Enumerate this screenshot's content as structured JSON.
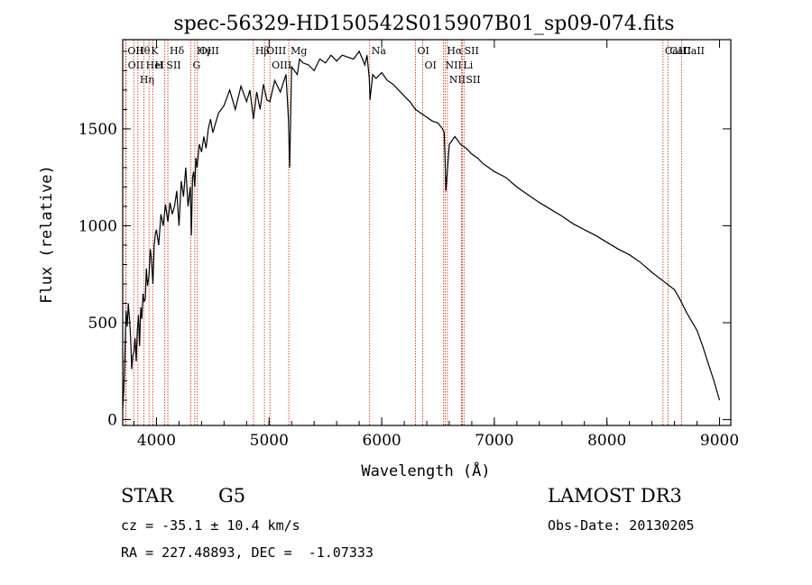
{
  "chart_data": {
    "type": "line",
    "title": "spec-56329-HD150542S015907B01_sp09-074.fits",
    "xlabel": "Wavelength (Å)",
    "ylabel": "Flux (relative)",
    "xlim": [
      3700,
      9100
    ],
    "ylim": [
      -30,
      1960
    ],
    "xticks": [
      4000,
      5000,
      6000,
      7000,
      8000,
      9000
    ],
    "yticks": [
      0,
      500,
      1000,
      1500
    ],
    "series": [
      {
        "name": "flux",
        "x": [
          3700,
          3710,
          3720,
          3730,
          3740,
          3750,
          3760,
          3770,
          3780,
          3790,
          3800,
          3810,
          3820,
          3830,
          3840,
          3850,
          3860,
          3870,
          3880,
          3890,
          3900,
          3910,
          3920,
          3933,
          3945,
          3955,
          3968,
          3980,
          3990,
          4000,
          4020,
          4040,
          4060,
          4080,
          4101,
          4120,
          4140,
          4160,
          4180,
          4200,
          4220,
          4240,
          4260,
          4280,
          4300,
          4310,
          4320,
          4330,
          4340,
          4350,
          4360,
          4380,
          4400,
          4420,
          4440,
          4460,
          4480,
          4500,
          4550,
          4600,
          4650,
          4700,
          4750,
          4800,
          4830,
          4861,
          4890,
          4920,
          4950,
          4980,
          5007,
          5050,
          5100,
          5150,
          5172,
          5183,
          5200,
          5250,
          5270,
          5300,
          5350,
          5400,
          5450,
          5500,
          5550,
          5600,
          5650,
          5700,
          5750,
          5800,
          5850,
          5870,
          5890,
          5896,
          5920,
          5950,
          6000,
          6050,
          6100,
          6150,
          6200,
          6250,
          6300,
          6350,
          6400,
          6450,
          6500,
          6540,
          6555,
          6563,
          6570,
          6600,
          6650,
          6700,
          6750,
          6800,
          6850,
          6900,
          6950,
          7000,
          7100,
          7200,
          7300,
          7400,
          7500,
          7600,
          7700,
          7800,
          7900,
          8000,
          8100,
          8200,
          8300,
          8400,
          8500,
          8600,
          8650,
          8700,
          8750,
          8800,
          8850,
          8900,
          8950,
          9000
        ],
        "y": [
          60,
          150,
          350,
          560,
          480,
          600,
          520,
          430,
          260,
          330,
          350,
          420,
          300,
          460,
          540,
          380,
          580,
          520,
          650,
          610,
          620,
          780,
          690,
          740,
          880,
          830,
          700,
          900,
          960,
          980,
          900,
          1060,
          1000,
          1110,
          1020,
          1120,
          1060,
          1100,
          1180,
          1000,
          1230,
          1150,
          1300,
          1100,
          1200,
          950,
          1250,
          1280,
          1200,
          1350,
          1300,
          1420,
          1380,
          1460,
          1400,
          1500,
          1550,
          1480,
          1580,
          1620,
          1700,
          1600,
          1720,
          1640,
          1700,
          1550,
          1690,
          1600,
          1730,
          1650,
          1640,
          1750,
          1690,
          1780,
          1550,
          1300,
          1820,
          1780,
          1860,
          1840,
          1830,
          1800,
          1860,
          1840,
          1880,
          1850,
          1880,
          1870,
          1860,
          1900,
          1830,
          1880,
          1760,
          1650,
          1780,
          1760,
          1790,
          1750,
          1730,
          1700,
          1670,
          1640,
          1600,
          1580,
          1560,
          1540,
          1530,
          1500,
          1480,
          1350,
          1180,
          1420,
          1460,
          1420,
          1400,
          1370,
          1350,
          1320,
          1300,
          1280,
          1250,
          1200,
          1160,
          1120,
          1085,
          1050,
          1010,
          980,
          950,
          915,
          880,
          850,
          810,
          760,
          715,
          670,
          620,
          560,
          510,
          460,
          380,
          290,
          200,
          100
        ]
      }
    ],
    "lines": [
      {
        "label": "Hθ",
        "x": 3798,
        "color": "#cc2200"
      },
      {
        "label": "OII",
        "x": 3727,
        "color": "#cc2200"
      },
      {
        "label": "OII",
        "x": 3729,
        "color": "#cc2200"
      },
      {
        "label": "HeI",
        "x": 3889,
        "color": "#cc2200"
      },
      {
        "label": "Hη",
        "x": 3835,
        "color": "#cc2200"
      },
      {
        "label": "K",
        "x": 3934,
        "color": "#cc2200"
      },
      {
        "label": "H",
        "x": 3968,
        "color": "#cc2200"
      },
      {
        "label": "Hδ",
        "x": 4101,
        "color": "#cc2200"
      },
      {
        "label": "SII",
        "x": 4072,
        "color": "#cc2200"
      },
      {
        "label": "OIII",
        "x": 4363,
        "color": "#cc2200"
      },
      {
        "label": "Hγ",
        "x": 4340,
        "color": "#cc2200"
      },
      {
        "label": "G",
        "x": 4305,
        "color": "#cc2200"
      },
      {
        "label": "OIII",
        "x": 4959,
        "color": "#cc2200"
      },
      {
        "label": "OIII",
        "x": 5007,
        "color": "#cc2200"
      },
      {
        "label": "Hβ",
        "x": 4861,
        "color": "#cc2200"
      },
      {
        "label": "Mg",
        "x": 5175,
        "color": "#cc2200"
      },
      {
        "label": "Na",
        "x": 5893,
        "color": "#cc2200"
      },
      {
        "label": "OI",
        "x": 6300,
        "color": "#cc2200"
      },
      {
        "label": "OI",
        "x": 6364,
        "color": "#cc2200"
      },
      {
        "label": "Hα",
        "x": 6563,
        "color": "#cc2200"
      },
      {
        "label": "NII",
        "x": 6548,
        "color": "#cc2200"
      },
      {
        "label": "NII",
        "x": 6583,
        "color": "#cc2200"
      },
      {
        "label": "SII",
        "x": 6717,
        "color": "#cc2200"
      },
      {
        "label": "Li",
        "x": 6708,
        "color": "#cc2200"
      },
      {
        "label": "SII",
        "x": 6731,
        "color": "#cc2200"
      },
      {
        "label": "CaII",
        "x": 8498,
        "color": "#cc2200"
      },
      {
        "label": "CaII",
        "x": 8542,
        "color": "#cc2200"
      },
      {
        "label": "CaII",
        "x": 8662,
        "color": "#cc2200"
      }
    ]
  },
  "footer": {
    "class_label": "STAR",
    "subclass": "G5",
    "survey": "LAMOST DR3",
    "cz": "cz = -35.1 ± 10.4 km/s",
    "obs_date": "Obs-Date: 20130205",
    "coords": "RA = 227.48893, DEC =  -1.07333"
  },
  "colors": {
    "spectrum": "#000000",
    "line_marker": "#cc2200",
    "axis": "#000000"
  }
}
